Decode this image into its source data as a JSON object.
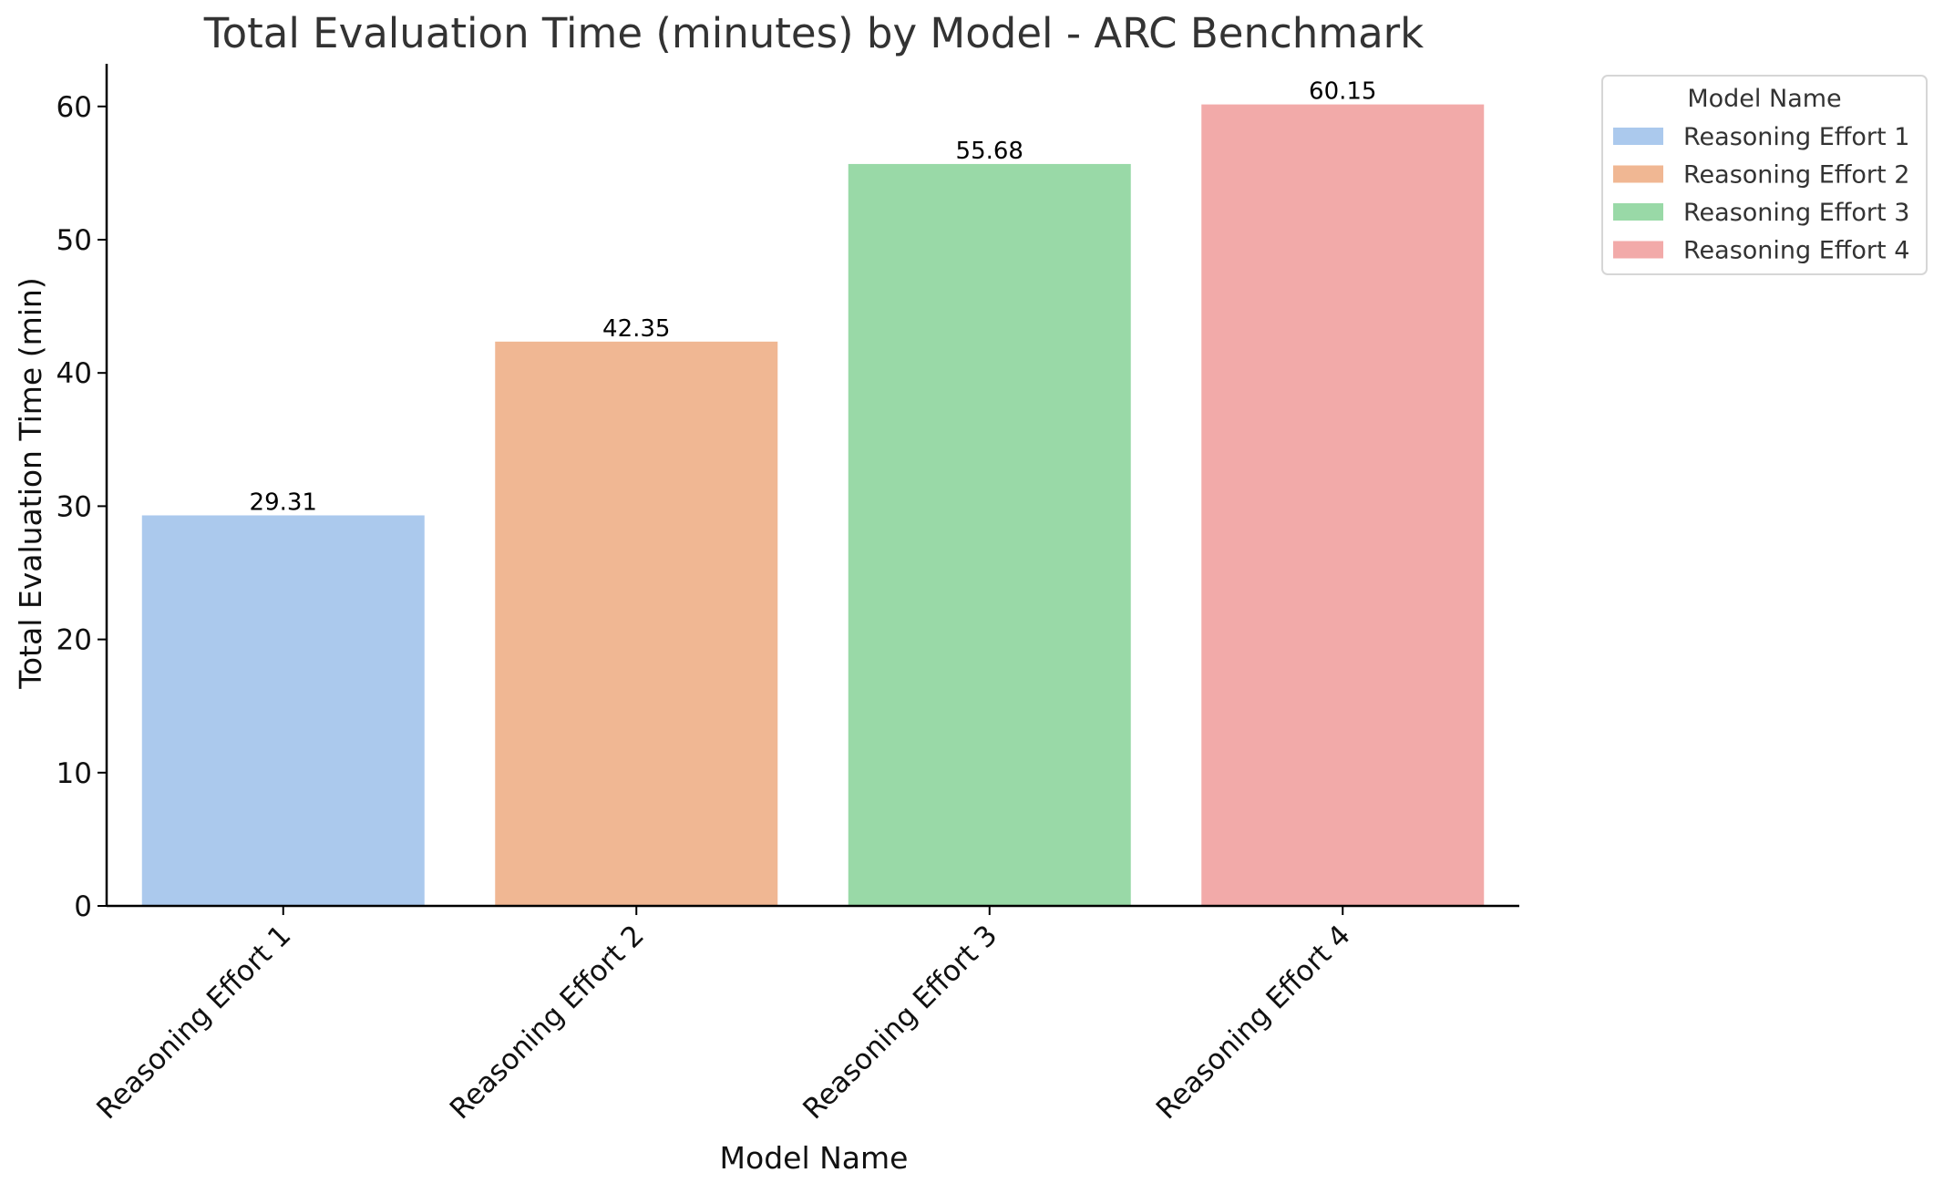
{
  "chart_data": {
    "type": "bar",
    "title": "Total Evaluation Time (minutes) by Model - ARC Benchmark",
    "xlabel": "Model Name",
    "ylabel": "Total Evaluation Time (min)",
    "categories": [
      "Reasoning Effort 1",
      "Reasoning Effort 2",
      "Reasoning Effort 3",
      "Reasoning Effort 4"
    ],
    "values": [
      29.31,
      42.35,
      55.68,
      60.15
    ],
    "data_labels": [
      "29.31",
      "42.35",
      "55.68",
      "60.15"
    ],
    "colors": [
      "#abc9ed",
      "#f0b793",
      "#99d9a7",
      "#f2aaa9"
    ],
    "ylim": [
      0,
      63.2
    ],
    "yticks": [
      0,
      10,
      20,
      30,
      40,
      50,
      60
    ],
    "grid": false,
    "legend": {
      "title": "Model Name",
      "placement": "outside-top-right",
      "entries": [
        "Reasoning Effort 1",
        "Reasoning Effort 2",
        "Reasoning Effort 3",
        "Reasoning Effort 4"
      ]
    }
  }
}
